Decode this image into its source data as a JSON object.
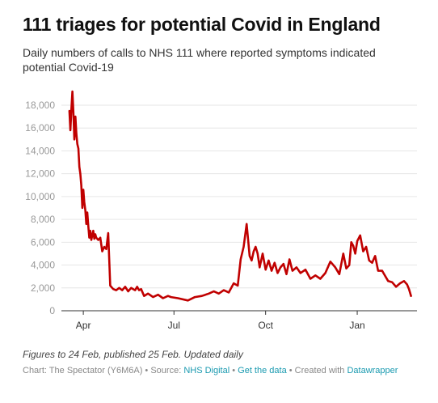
{
  "header": {
    "title": "111 triages for potential Covid in England",
    "subtitle": "Daily numbers of calls to NHS 111 where reported symptoms indicated potential Covid-19"
  },
  "footer": {
    "notes": "Figures to 24 Feb, published 25 Feb. Updated daily",
    "chart_label": "Chart: The Spectator (Y6M6A)",
    "sep": " • ",
    "source_label": "Source: ",
    "source_link": "NHS Digital",
    "data_link": "Get the data",
    "created_label": "Created with ",
    "created_link": "Datawrapper"
  },
  "colors": {
    "line": "#c00000",
    "grid": "#e6e6e6",
    "tick": "#999999"
  },
  "chart_data": {
    "type": "line",
    "title": "111 triages for potential Covid in England",
    "subtitle": "Daily numbers of calls to NHS 111 where reported symptoms indicated potential Covid-19",
    "xlabel": "",
    "ylabel": "",
    "x_ticks": [
      {
        "date": "2020-04-01",
        "label": "Apr"
      },
      {
        "date": "2020-07-01",
        "label": "Jul"
      },
      {
        "date": "2020-10-01",
        "label": "Oct"
      },
      {
        "date": "2021-01-01",
        "label": "Jan"
      }
    ],
    "y_ticks": [
      0,
      2000,
      4000,
      6000,
      8000,
      10000,
      12000,
      14000,
      16000,
      18000
    ],
    "y_tick_labels": [
      "0",
      "2,000",
      "4,000",
      "6,000",
      "8,000",
      "10,000",
      "12,000",
      "14,000",
      "16,000",
      "18,000"
    ],
    "ylim": [
      0,
      18000
    ],
    "xlim": [
      "2020-03-10",
      "2021-03-02"
    ],
    "grid": true,
    "legend": "none",
    "series": [
      {
        "x": [
          "2020-03-18",
          "2020-03-19",
          "2020-03-20",
          "2020-03-21",
          "2020-03-22",
          "2020-03-23",
          "2020-03-24",
          "2020-03-25",
          "2020-03-26",
          "2020-03-27",
          "2020-03-28",
          "2020-03-29",
          "2020-03-30",
          "2020-03-31",
          "2020-04-01",
          "2020-04-02",
          "2020-04-03",
          "2020-04-04",
          "2020-04-05",
          "2020-04-06",
          "2020-04-07",
          "2020-04-08",
          "2020-04-09",
          "2020-04-10",
          "2020-04-11",
          "2020-04-12",
          "2020-04-13",
          "2020-04-14",
          "2020-04-16",
          "2020-04-18",
          "2020-04-20",
          "2020-04-22",
          "2020-04-24",
          "2020-04-26",
          "2020-04-28",
          "2020-05-01",
          "2020-05-04",
          "2020-05-07",
          "2020-05-10",
          "2020-05-13",
          "2020-05-16",
          "2020-05-19",
          "2020-05-21",
          "2020-05-23",
          "2020-05-25",
          "2020-05-27",
          "2020-05-29",
          "2020-06-01",
          "2020-06-05",
          "2020-06-10",
          "2020-06-15",
          "2020-06-20",
          "2020-06-25",
          "2020-06-28",
          "2020-07-05",
          "2020-07-15",
          "2020-07-22",
          "2020-07-29",
          "2020-08-05",
          "2020-08-10",
          "2020-08-15",
          "2020-08-20",
          "2020-08-25",
          "2020-08-30",
          "2020-09-03",
          "2020-09-06",
          "2020-09-09",
          "2020-09-12",
          "2020-09-15",
          "2020-09-17",
          "2020-09-19",
          "2020-09-21",
          "2020-09-23",
          "2020-09-25",
          "2020-09-28",
          "2020-10-01",
          "2020-10-04",
          "2020-10-07",
          "2020-10-10",
          "2020-10-13",
          "2020-10-16",
          "2020-10-19",
          "2020-10-22",
          "2020-10-25",
          "2020-10-28",
          "2020-11-01",
          "2020-11-05",
          "2020-11-10",
          "2020-11-15",
          "2020-11-20",
          "2020-11-25",
          "2020-11-30",
          "2020-12-05",
          "2020-12-10",
          "2020-12-14",
          "2020-12-18",
          "2020-12-21",
          "2020-12-24",
          "2020-12-26",
          "2020-12-28",
          "2020-12-30",
          "2021-01-01",
          "2021-01-04",
          "2021-01-07",
          "2021-01-10",
          "2021-01-13",
          "2021-01-16",
          "2021-01-19",
          "2021-01-22",
          "2021-01-26",
          "2021-02-01",
          "2021-02-05",
          "2021-02-09",
          "2021-02-13",
          "2021-02-17",
          "2021-02-20",
          "2021-02-22",
          "2021-02-24"
        ],
        "y": [
          17500,
          15800,
          17600,
          19200,
          17400,
          15000,
          17000,
          15500,
          14600,
          14200,
          12600,
          12000,
          11000,
          9000,
          10600,
          9500,
          8800,
          7600,
          8600,
          7400,
          6400,
          7000,
          6200,
          6600,
          7000,
          6300,
          6700,
          6400,
          6200,
          6400,
          5200,
          5600,
          5400,
          6800,
          2200,
          1900,
          1800,
          2000,
          1800,
          2100,
          1700,
          2000,
          1900,
          1800,
          2100,
          1800,
          1900,
          1300,
          1500,
          1200,
          1400,
          1100,
          1300,
          1200,
          1100,
          900,
          1200,
          1300,
          1500,
          1700,
          1500,
          1800,
          1600,
          2400,
          2200,
          4500,
          5600,
          7600,
          4800,
          4400,
          5200,
          5600,
          5000,
          3800,
          5000,
          3600,
          4400,
          3500,
          4200,
          3300,
          3800,
          4100,
          3200,
          4500,
          3500,
          3800,
          3300,
          3600,
          2800,
          3100,
          2800,
          3300,
          4300,
          3800,
          3200,
          5000,
          3700,
          4000,
          6000,
          5700,
          5000,
          6100,
          6600,
          5200,
          5600,
          4400,
          4200,
          4800,
          3500,
          3500,
          2600,
          2500,
          2100,
          2400,
          2600,
          2300,
          1900,
          1300
        ]
      }
    ]
  }
}
